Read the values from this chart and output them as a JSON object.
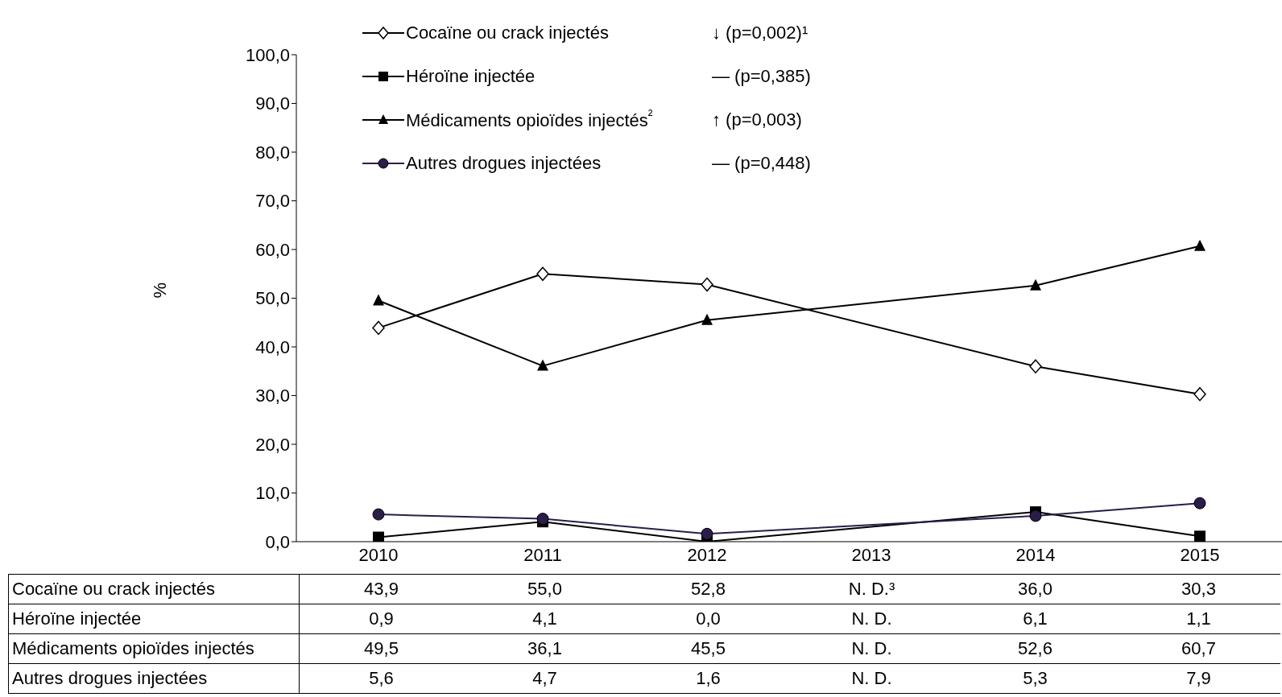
{
  "chart_data": {
    "type": "line",
    "ylabel": "%",
    "categories": [
      "2010",
      "2011",
      "2012",
      "2013",
      "2014",
      "2015"
    ],
    "ylim": [
      0,
      100
    ],
    "yticks": [
      {
        "value": 0,
        "label": "0,0"
      },
      {
        "value": 10,
        "label": "10,0"
      },
      {
        "value": 20,
        "label": "20,0"
      },
      {
        "value": 30,
        "label": "30,0"
      },
      {
        "value": 40,
        "label": "40,0"
      },
      {
        "value": 50,
        "label": "50,0"
      },
      {
        "value": 60,
        "label": "60,0"
      },
      {
        "value": 70,
        "label": "70,0"
      },
      {
        "value": 80,
        "label": "80,0"
      },
      {
        "value": 90,
        "label": "90,0"
      },
      {
        "value": 100,
        "label": "100,0"
      }
    ],
    "grid": false,
    "legend": "top",
    "line_style": "solid",
    "series": [
      {
        "name": "Cocaïne ou crack injectés",
        "color": "#000000",
        "marker": "diamond",
        "values": [
          43.9,
          55.0,
          52.8,
          null,
          36.0,
          30.3
        ],
        "value_labels": [
          "43,9",
          "55,0",
          "52,8",
          "N. D.³",
          "36,0",
          "30,3"
        ]
      },
      {
        "name": "Héroïne injectée",
        "color": "#000000",
        "marker": "square",
        "values": [
          0.9,
          4.1,
          0.0,
          null,
          6.1,
          1.1
        ],
        "value_labels": [
          "0,9",
          "4,1",
          "0,0",
          "N. D.",
          "6,1",
          "1,1"
        ]
      },
      {
        "name": "Médicaments opioïdes injectés",
        "color": "#000000",
        "marker": "triangle",
        "values": [
          49.5,
          36.1,
          45.5,
          null,
          52.6,
          60.7
        ],
        "value_labels": [
          "49,5",
          "36,1",
          "45,5",
          "N. D.",
          "52,6",
          "60,7"
        ]
      },
      {
        "name": "Autres drogues injectées",
        "color": "#2b1d4a",
        "marker": "circle",
        "values": [
          5.6,
          4.7,
          1.6,
          null,
          5.3,
          7.9
        ],
        "value_labels": [
          "5,6",
          "4,7",
          "1,6",
          "N. D.",
          "5,3",
          "7,9"
        ]
      }
    ],
    "annotations": [
      "↓ (p=0,002)¹",
      "— (p=0,385)",
      "↑ (p=0,003)",
      "— (p=0,448)",
      "²"
    ]
  }
}
